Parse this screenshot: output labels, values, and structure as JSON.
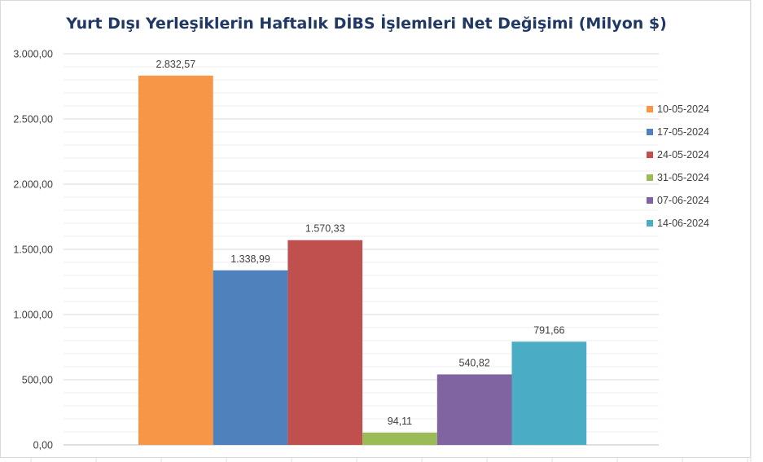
{
  "chart_data": {
    "type": "bar",
    "title": "Yurt Dışı Yerleşiklerin Haftalık DİBS İşlemleri Net Değişimi (Milyon $)",
    "xlabel": "",
    "ylabel": "",
    "ylim": [
      0,
      3000
    ],
    "yticks": [
      0,
      500,
      1000,
      1500,
      2000,
      2500,
      3000
    ],
    "ytick_labels": [
      "0,00",
      "500,00",
      "1.000,00",
      "1.500,00",
      "2.000,00",
      "2.500,00",
      "3.000,00"
    ],
    "grid": true,
    "legend_position": "right",
    "series": [
      {
        "name": "10-05-2024",
        "value": 2832.57,
        "label": "2.832,57",
        "color": "#f79646"
      },
      {
        "name": "17-05-2024",
        "value": 1338.99,
        "label": "1.338,99",
        "color": "#4f81bd"
      },
      {
        "name": "24-05-2024",
        "value": 1570.33,
        "label": "1.570,33",
        "color": "#c0504d"
      },
      {
        "name": "31-05-2024",
        "value": 94.11,
        "label": "94,11",
        "color": "#9bbb59"
      },
      {
        "name": "07-06-2024",
        "value": 540.82,
        "label": "540,82",
        "color": "#8064a2"
      },
      {
        "name": "14-06-2024",
        "value": 791.66,
        "label": "791,66",
        "color": "#4bacc6"
      }
    ]
  }
}
